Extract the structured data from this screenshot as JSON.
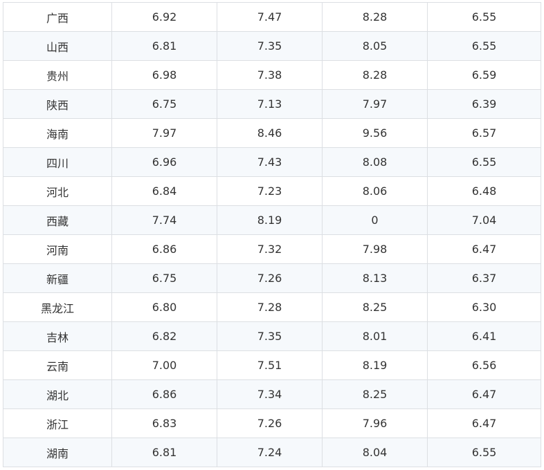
{
  "table": {
    "rows": [
      [
        "广西",
        "6.92",
        "7.47",
        "8.28",
        "6.55"
      ],
      [
        "山西",
        "6.81",
        "7.35",
        "8.05",
        "6.55"
      ],
      [
        "贵州",
        "6.98",
        "7.38",
        "8.28",
        "6.59"
      ],
      [
        "陕西",
        "6.75",
        "7.13",
        "7.97",
        "6.39"
      ],
      [
        "海南",
        "7.97",
        "8.46",
        "9.56",
        "6.57"
      ],
      [
        "四川",
        "6.96",
        "7.43",
        "8.08",
        "6.55"
      ],
      [
        "河北",
        "6.84",
        "7.23",
        "8.06",
        "6.48"
      ],
      [
        "西藏",
        "7.74",
        "8.19",
        "0",
        "7.04"
      ],
      [
        "河南",
        "6.86",
        "7.32",
        "7.98",
        "6.47"
      ],
      [
        "新疆",
        "6.75",
        "7.26",
        "8.13",
        "6.37"
      ],
      [
        "黑龙江",
        "6.80",
        "7.28",
        "8.25",
        "6.30"
      ],
      [
        "吉林",
        "6.82",
        "7.35",
        "8.01",
        "6.41"
      ],
      [
        "云南",
        "7.00",
        "7.51",
        "8.19",
        "6.56"
      ],
      [
        "湖北",
        "6.86",
        "7.34",
        "8.25",
        "6.47"
      ],
      [
        "浙江",
        "6.83",
        "7.26",
        "7.96",
        "6.47"
      ],
      [
        "湖南",
        "6.81",
        "7.24",
        "8.04",
        "6.55"
      ]
    ]
  }
}
